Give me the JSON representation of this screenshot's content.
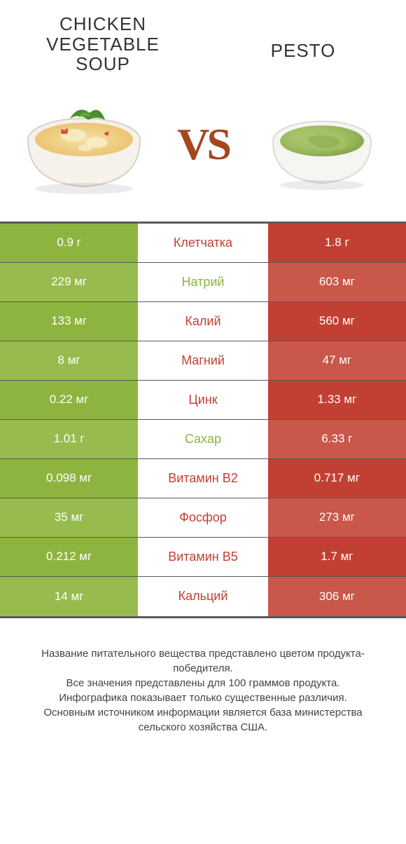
{
  "colors": {
    "left": "#8eb440",
    "right": "#c24033",
    "row_left_alt": "#98bb4f",
    "row_right_alt": "#c9574a",
    "divider": "#5a5a5a",
    "vs": "#a6461e"
  },
  "left_food": {
    "title": "CHICKEN VEGETABLE SOUP"
  },
  "right_food": {
    "title": "PESTO"
  },
  "rows": [
    {
      "nutrient": "Клетчатка",
      "left": "0.9 г",
      "right": "1.8 г",
      "winner": "right"
    },
    {
      "nutrient": "Натрий",
      "left": "229 мг",
      "right": "603 мг",
      "winner": "left"
    },
    {
      "nutrient": "Калий",
      "left": "133 мг",
      "right": "560 мг",
      "winner": "right"
    },
    {
      "nutrient": "Магний",
      "left": "8 мг",
      "right": "47 мг",
      "winner": "right"
    },
    {
      "nutrient": "Цинк",
      "left": "0.22 мг",
      "right": "1.33 мг",
      "winner": "right"
    },
    {
      "nutrient": "Сахар",
      "left": "1.01 г",
      "right": "6.33 г",
      "winner": "left"
    },
    {
      "nutrient": "Витамин B2",
      "left": "0.098 мг",
      "right": "0.717 мг",
      "winner": "right"
    },
    {
      "nutrient": "Фосфор",
      "left": "35 мг",
      "right": "273 мг",
      "winner": "right"
    },
    {
      "nutrient": "Витамин B5",
      "left": "0.212 мг",
      "right": "1.7 мг",
      "winner": "right"
    },
    {
      "nutrient": "Кальций",
      "left": "14 мг",
      "right": "306 мг",
      "winner": "right"
    }
  ],
  "footer": {
    "l1": "Название питательного вещества представлено цветом продукта-победителя.",
    "l2": "Все значения представлены для 100 граммов продукта.",
    "l3": "Инфографика показывает только существенные различия.",
    "l4": "Основным источником информации является база министерства сельского хозяйства США."
  }
}
